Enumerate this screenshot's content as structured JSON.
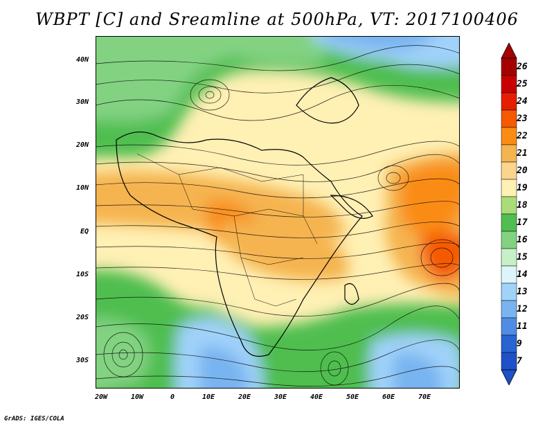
{
  "title": "WBPT [C] and Sreamline at 500hPa, VT: 2017100406",
  "footer": "GrADS: IGES/COLA",
  "map": {
    "lat_labels": [
      "40N",
      "30N",
      "20N",
      "10N",
      "EQ",
      "10S",
      "20S",
      "30S"
    ],
    "lon_labels": [
      "20W",
      "10W",
      "0",
      "10E",
      "20E",
      "30E",
      "40E",
      "50E",
      "60E",
      "70E"
    ]
  },
  "colorbar": {
    "labels": [
      "26",
      "25",
      "24",
      "23",
      "22",
      "21",
      "20",
      "19",
      "18",
      "17",
      "16",
      "15",
      "14",
      "13",
      "12",
      "11",
      "9",
      "7"
    ],
    "colors": [
      "#a50000",
      "#c80000",
      "#e61e00",
      "#f55a00",
      "#fa8c14",
      "#f5b450",
      "#fad68c",
      "#fff0b4",
      "#aadc78",
      "#50be50",
      "#82d282",
      "#c8f0c8",
      "#ddf5fa",
      "#a0d2fa",
      "#78b4f0",
      "#508ce6",
      "#2864d2",
      "#1e50c8"
    ]
  }
}
